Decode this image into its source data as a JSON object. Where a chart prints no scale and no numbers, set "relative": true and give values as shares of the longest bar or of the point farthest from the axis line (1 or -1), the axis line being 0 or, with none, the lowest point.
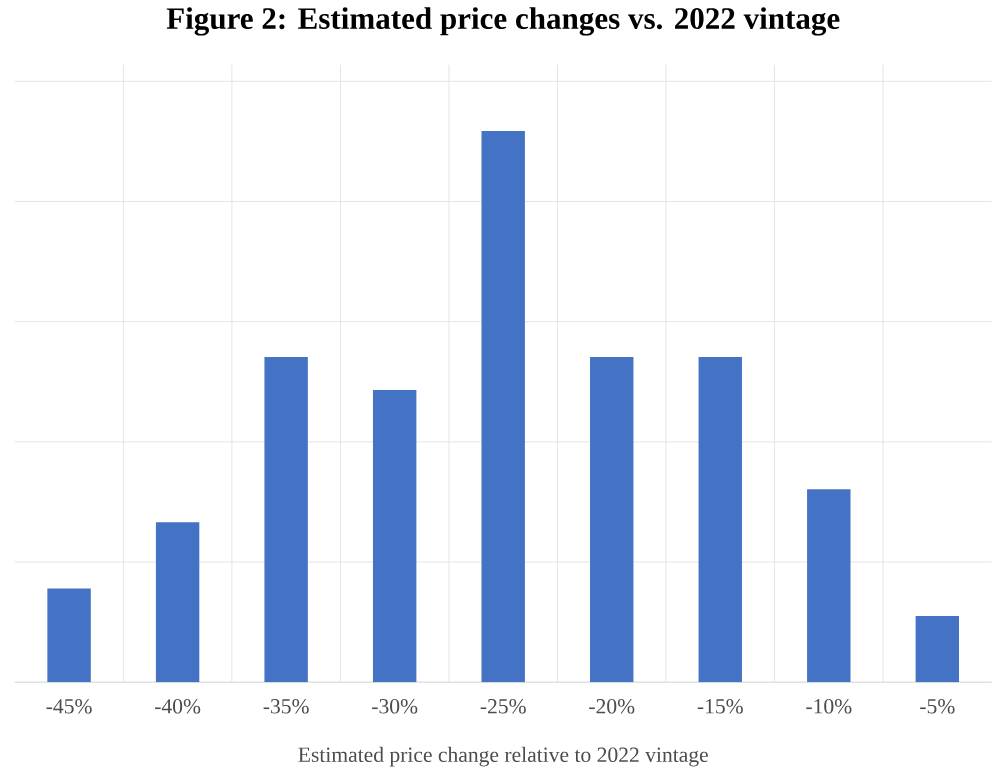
{
  "chart_data": {
    "type": "bar",
    "title": "Figure 2: Estimated price changes vs. 2022 vintage",
    "xlabel": "Estimated price change relative to 2022 vintage",
    "categories": [
      "-45%",
      "-40%",
      "-35%",
      "-30%",
      "-25%",
      "-20%",
      "-15%",
      "-10%",
      "-5%"
    ],
    "values": [
      0.17,
      0.29,
      0.59,
      0.53,
      1,
      0.59,
      0.59,
      0.35,
      0.12
    ],
    "color": "#4472c4",
    "relative": true,
    "grid": true
  }
}
